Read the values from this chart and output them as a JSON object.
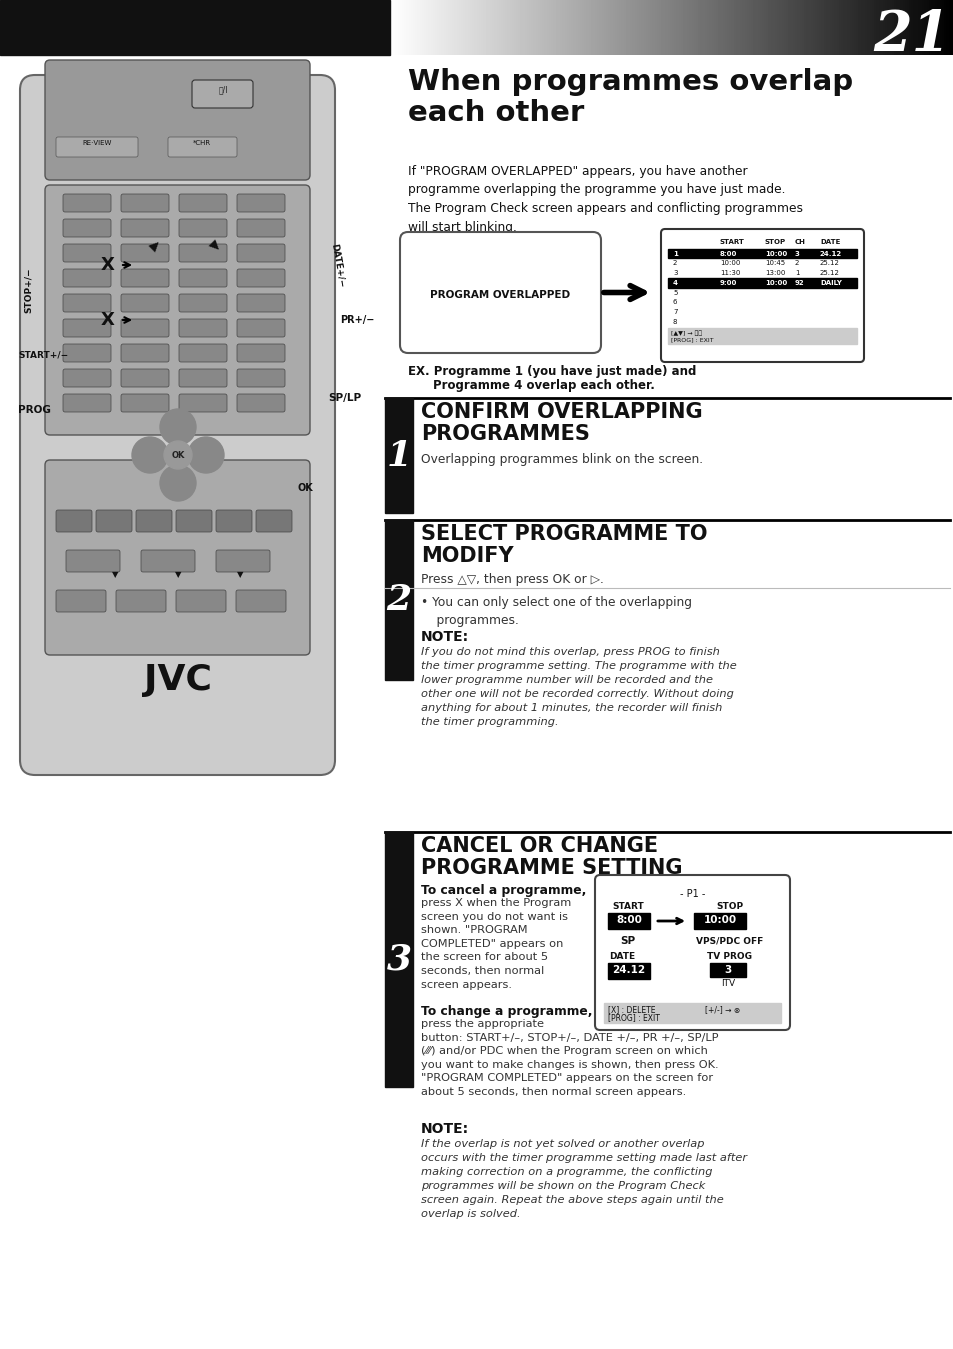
{
  "page_number": "21",
  "bg_color": "#ffffff",
  "main_title": "When programmes overlap\neach other",
  "intro_text": "If \"PROGRAM OVERLAPPED\" appears, you have another\nprogramme overlapping the programme you have just made.\nThe Program Check screen appears and conflicting programmes\nwill start blinking.",
  "program_overlapped_label": "PROGRAM OVERLAPPED",
  "screen_rows": [
    [
      "1",
      "8:00",
      "10:00",
      "3",
      "24.12",
      true
    ],
    [
      "2",
      "10:00",
      "10:45",
      "2",
      "25.12",
      false
    ],
    [
      "3",
      "11:30",
      "13:00",
      "1",
      "25.12",
      false
    ],
    [
      "4",
      "9:00",
      "10:00",
      "92",
      "DAILY",
      true
    ],
    [
      "5",
      "",
      "",
      "",
      "",
      false
    ],
    [
      "6",
      "",
      "",
      "",
      "",
      false
    ],
    [
      "7",
      "",
      "",
      "",
      "",
      false
    ],
    [
      "8",
      "",
      "",
      "",
      "",
      false
    ]
  ],
  "ex_text1": "EX. Programme 1 (you have just made) and",
  "ex_text2": "Programme 4 overlap each other.",
  "step1_title": "CONFIRM OVERLAPPING\nPROGRAMMES",
  "step1_body": "Overlapping programmes blink on the screen.",
  "step2_title": "SELECT PROGRAMME TO\nMODIFY",
  "step2_body_line1": "Press △▽, then press OK or ▷.",
  "step2_bullet": "You can only select one of the overlapping\n    programmes.",
  "note1_title": "NOTE:",
  "note1_body": "If you do not mind this overlap, press PROG to finish\nthe timer programme setting. The programme with the\nlower programme number will be recorded and the\nother one will not be recorded correctly. Without doing\nanything for about 1 minutes, the recorder will finish\nthe timer programming.",
  "step3_title": "CANCEL OR CHANGE\nPROGRAMME SETTING",
  "step3_cancel_title": "To cancel a programme,",
  "step3_cancel_body": "press X when the Program\nscreen you do not want is\nshown. \"PROGRAM\nCOMPLETED\" appears on\nthe screen for about 5\nseconds, then normal\nscreen appears.",
  "step3_change_title": "To change a programme,",
  "step3_change_body": "press the appropriate\nbutton: START+/–, STOP+/–, DATE +/–, PR +/–, SP/LP\n(⁄⁄⁄) and/or PDC when the Program screen on which\nyou want to make changes is shown, then press OK.\n\"PROGRAM COMPLETED\" appears on the screen for\nabout 5 seconds, then normal screen appears.",
  "note2_title": "NOTE:",
  "note2_body": "If the overlap is not yet solved or another overlap\noccurs with the timer programme setting made last after\nmaking correction on a programme, the conflicting\nprogrammes will be shown on the Program Check\nscreen again. Repeat the above steps again until the\noverlap is solved.",
  "p1_screen_title": "- P1 -",
  "p1_start_label": "START",
  "p1_start_val": "8:00",
  "p1_stop_label": "STOP",
  "p1_stop_val": "10:00",
  "p1_sp_label": "SP",
  "p1_vps_label": "VPS/PDC OFF",
  "p1_date_label": "DATE",
  "p1_date_val": "24.12",
  "p1_tvprog_label": "TV PROG",
  "p1_tvprog_val": "3",
  "p1_itv_label": "ITV",
  "p1_footer1": "[X] : DELETE",
  "p1_footer2": "[+/-] → ⊗",
  "p1_footer3": "[PROG] : EXIT",
  "left_col_color": "#111111",
  "divider_color": "#000000"
}
